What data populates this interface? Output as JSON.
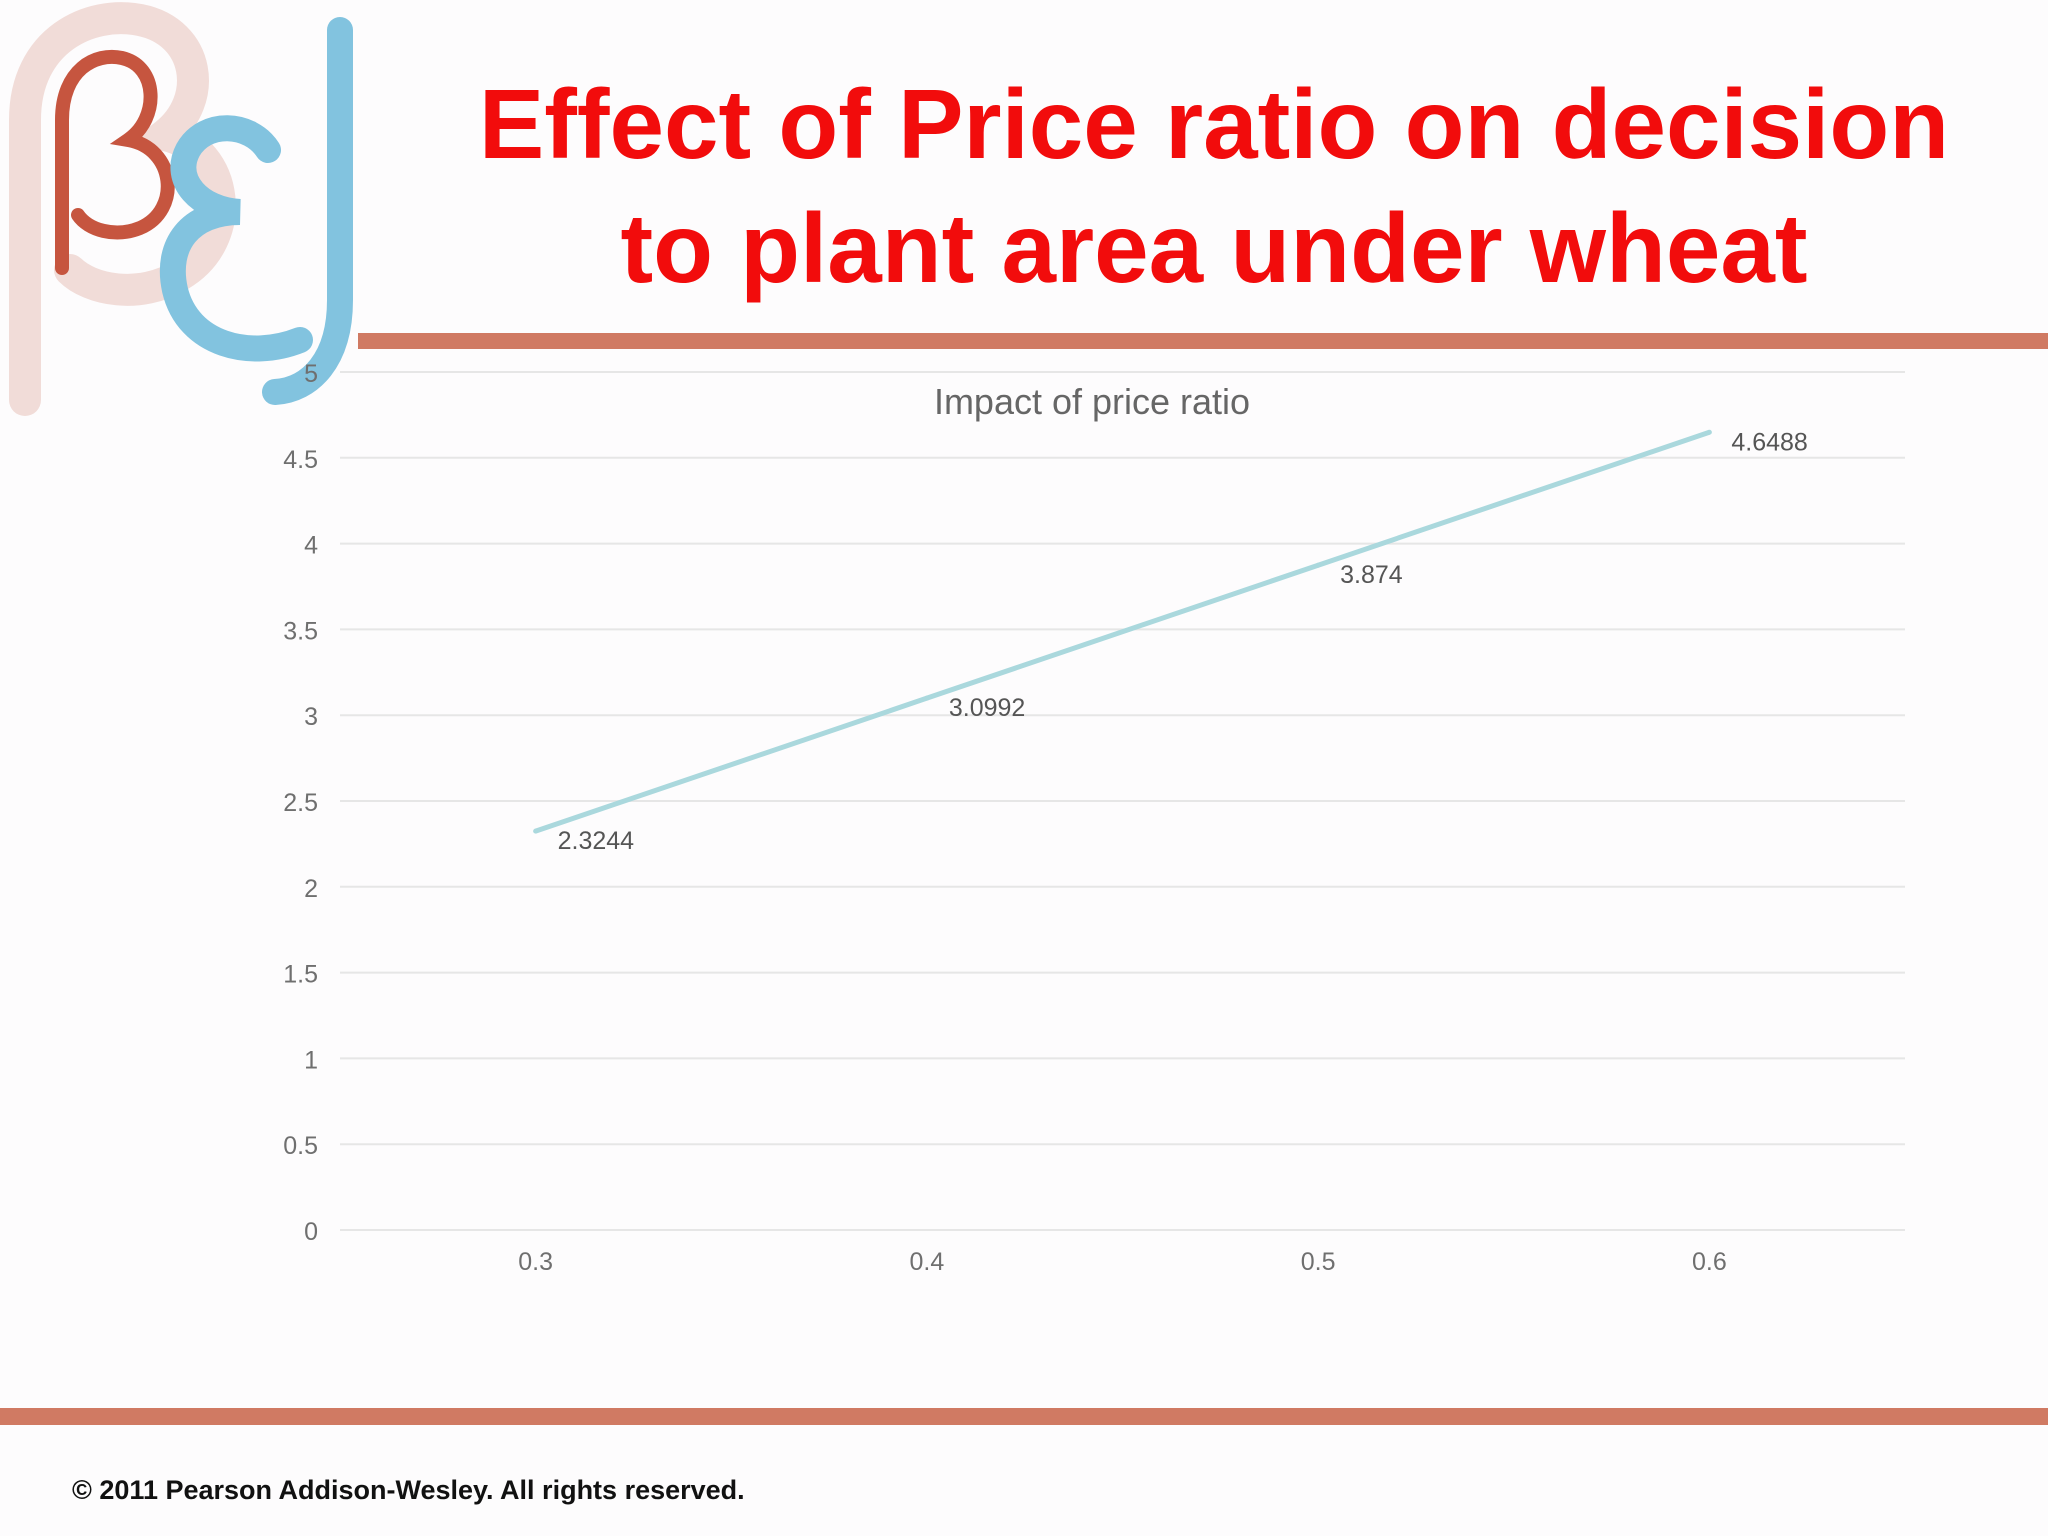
{
  "slide": {
    "title_line1": "Effect of Price ratio on decision",
    "title_line2": "to plant area under wheat",
    "footer": "© 2011 Pearson Addison-Wesley. All rights reserved.",
    "logo_icon": "beta-epsilon-logo-icon"
  },
  "colors": {
    "title": "#f20c0c",
    "rule": "#d07a63",
    "series_line": "#aad8dd",
    "gridline": "#e6e6e6",
    "axis_text": "#6f6f6f",
    "logo_beta": "#c6553f",
    "logo_blue": "#82c3df",
    "logo_shadow": "#f1dcd8"
  },
  "chart_data": {
    "type": "line",
    "title": "Impact of price ratio",
    "xlabel": "",
    "ylabel": "",
    "x": [
      0.3,
      0.4,
      0.5,
      0.6
    ],
    "x_tick_labels": [
      "0.3",
      "0.4",
      "0.5",
      "0.6"
    ],
    "xlim": [
      0.25,
      0.65
    ],
    "ylim": [
      0,
      5
    ],
    "y_ticks": [
      0,
      0.5,
      1,
      1.5,
      2,
      2.5,
      3,
      3.5,
      4,
      4.5,
      5
    ],
    "y_tick_labels": [
      "0",
      "0.5",
      "1",
      "1.5",
      "2",
      "2.5",
      "3",
      "3.5",
      "4",
      "4.5",
      "5"
    ],
    "series": [
      {
        "values": [
          2.3244,
          3.0992,
          3.874,
          4.6488
        ],
        "labels": [
          "2.3244",
          "3.0992",
          "3.874",
          "4.6488"
        ]
      }
    ],
    "grid": true,
    "legend": "none"
  }
}
